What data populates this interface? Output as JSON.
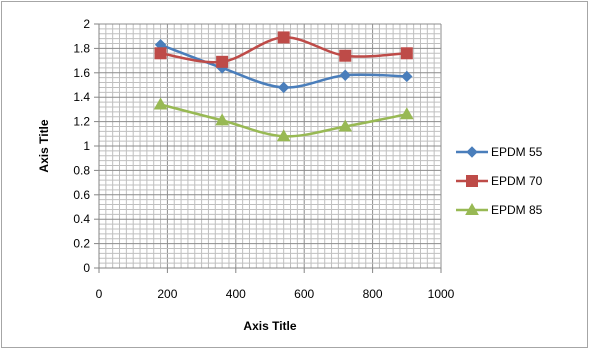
{
  "chart_data": {
    "type": "line",
    "xlabel": "Axis Title",
    "ylabel": "Axis Title",
    "xlim": [
      0,
      1000
    ],
    "ylim": [
      0,
      2
    ],
    "x_ticks": [
      "0",
      "200",
      "400",
      "600",
      "800",
      "1000"
    ],
    "y_ticks": [
      "0",
      "0.2",
      "0.4",
      "0.6",
      "0.8",
      "1",
      "1.2",
      "1.4",
      "1.6",
      "1.8",
      "2"
    ],
    "grid": true,
    "smooth": true,
    "legend_position": "right",
    "x": [
      180,
      360,
      540,
      720,
      900
    ],
    "series": [
      {
        "name": "EPDM 55",
        "values": [
          1.83,
          1.64,
          1.48,
          1.58,
          1.57
        ],
        "color": "#4a7ebb",
        "marker": "diamond"
      },
      {
        "name": "EPDM 70",
        "values": [
          1.76,
          1.69,
          1.89,
          1.74,
          1.76
        ],
        "color": "#be4b48",
        "marker": "square"
      },
      {
        "name": "EPDM 85",
        "values": [
          1.34,
          1.21,
          1.08,
          1.16,
          1.26
        ],
        "color": "#98b954",
        "marker": "triangle"
      }
    ]
  }
}
